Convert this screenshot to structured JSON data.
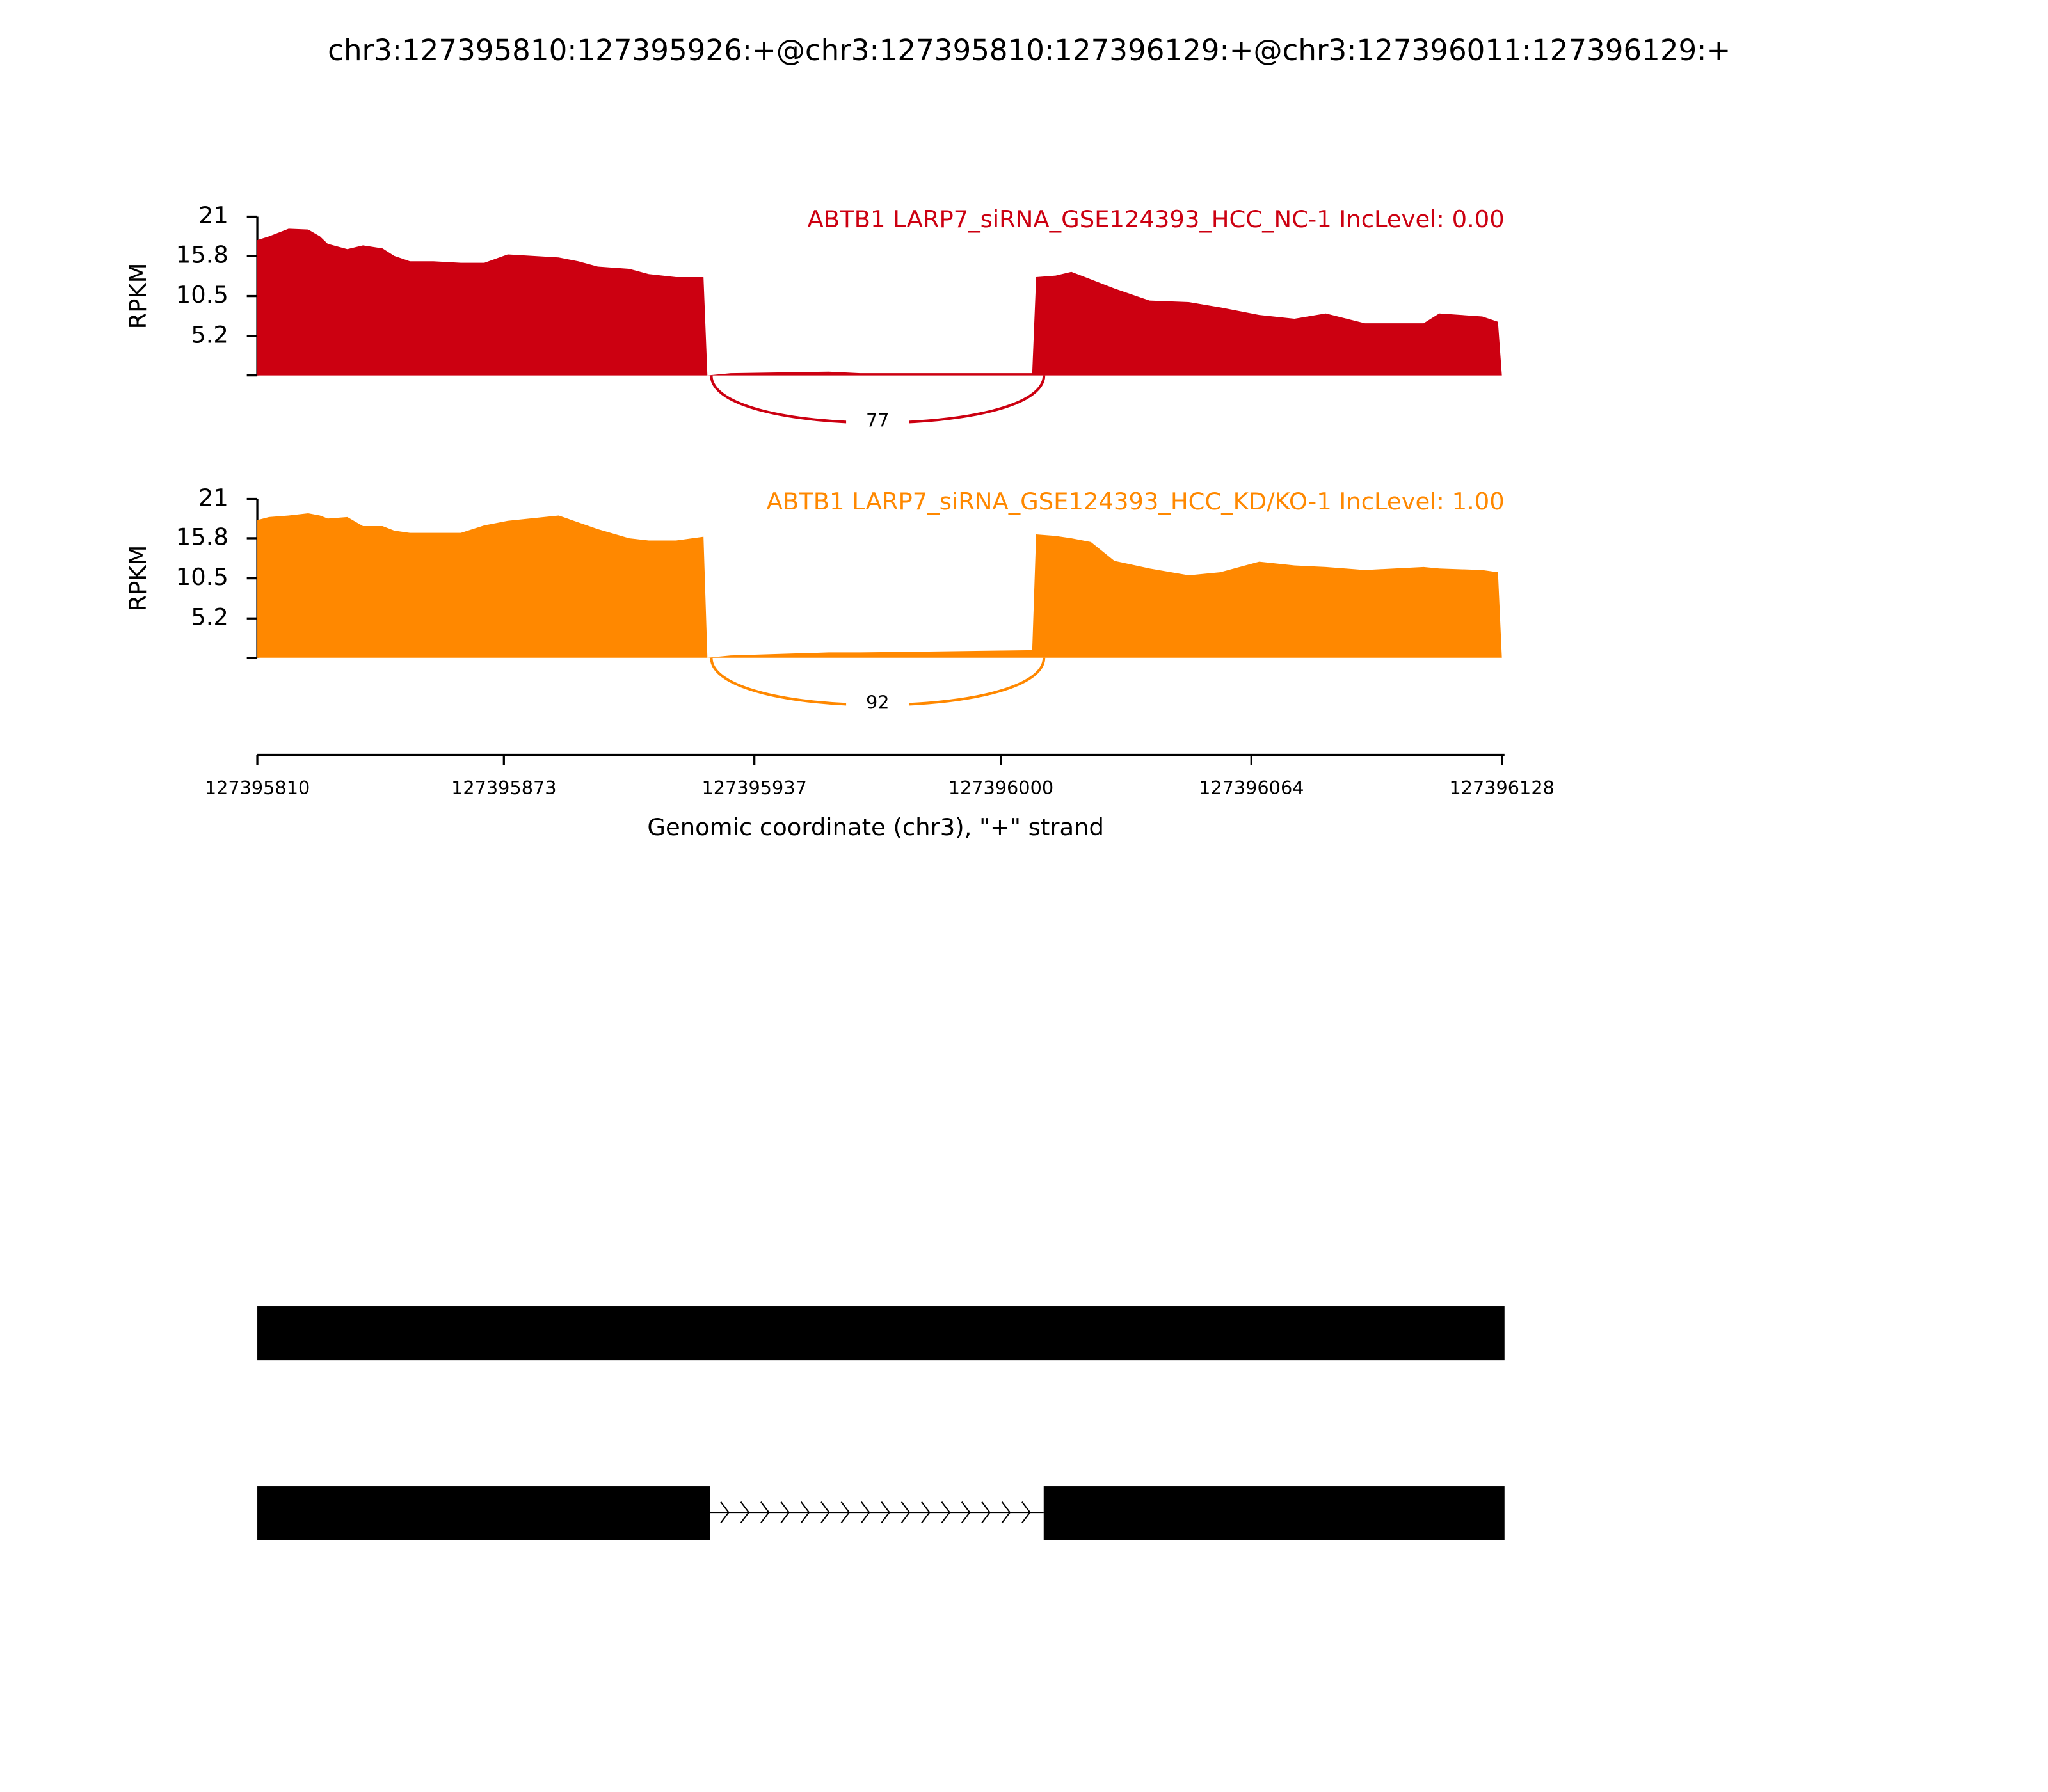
{
  "chart_data": {
    "type": "area",
    "title": "chr3:127395810:127395926:+@chr3:127395810:127396129:+@chr3:127396011:127396129:+",
    "ylabel": "RPKM",
    "xlabel": "Genomic coordinate (chr3), \"+\" strand",
    "xlim": [
      127395810,
      127396128
    ],
    "xticks": [
      127395810,
      127395873,
      127395937,
      127396000,
      127396064,
      127396128
    ],
    "ylim": [
      0,
      21
    ],
    "yticks": [
      5.2,
      10.5,
      15.8,
      21
    ],
    "junction_x": [
      127395926,
      127396011
    ],
    "x": [
      127395810,
      127395813,
      127395818,
      127395823,
      127395826,
      127395828,
      127395833,
      127395837,
      127395842,
      127395845,
      127395849,
      127395855,
      127395862,
      127395868,
      127395874,
      127395887,
      127395892,
      127395897,
      127395905,
      127395910,
      127395917,
      127395924,
      127395925,
      127395931,
      127395956,
      127395964,
      127396008,
      127396009,
      127396014,
      127396018,
      127396023,
      127396029,
      127396038,
      127396048,
      127396056,
      127396066,
      127396075,
      127396083,
      127396093,
      127396108,
      127396112,
      127396123,
      127396127,
      127396128
    ],
    "series": [
      {
        "name": "ABTB1 LARP7_siRNA_GSE124393_HCC_NC-1 IncLevel: 0.00",
        "color": "#cc0011",
        "junction": 77,
        "values": [
          17.9,
          18.4,
          19.4,
          19.3,
          18.4,
          17.4,
          16.7,
          17.2,
          16.8,
          15.8,
          15.1,
          15.1,
          14.9,
          14.9,
          16.0,
          15.6,
          15.1,
          14.4,
          14.1,
          13.4,
          13.0,
          13.0,
          0,
          0.3,
          0.5,
          0.3,
          0.3,
          13.0,
          13.2,
          13.7,
          12.7,
          11.5,
          9.9,
          9.7,
          9.0,
          8.0,
          7.5,
          8.2,
          6.9,
          6.9,
          8.2,
          7.8,
          7.1,
          0
        ]
      },
      {
        "name": "ABTB1 LARP7_siRNA_GSE124393_HCC_KD/KO-1 IncLevel: 1.00",
        "color": "#ff8800",
        "junction": 92,
        "values": [
          18.2,
          18.6,
          18.8,
          19.1,
          18.8,
          18.4,
          18.6,
          17.4,
          17.4,
          16.8,
          16.5,
          16.5,
          16.5,
          17.5,
          18.1,
          18.8,
          17.9,
          17.0,
          15.8,
          15.5,
          15.5,
          16.0,
          0,
          0.3,
          0.7,
          0.7,
          1.0,
          16.3,
          16.1,
          15.8,
          15.3,
          12.8,
          11.8,
          10.9,
          11.3,
          12.7,
          12.2,
          12.0,
          11.6,
          12.0,
          11.8,
          11.6,
          11.3,
          0
        ]
      }
    ]
  }
}
